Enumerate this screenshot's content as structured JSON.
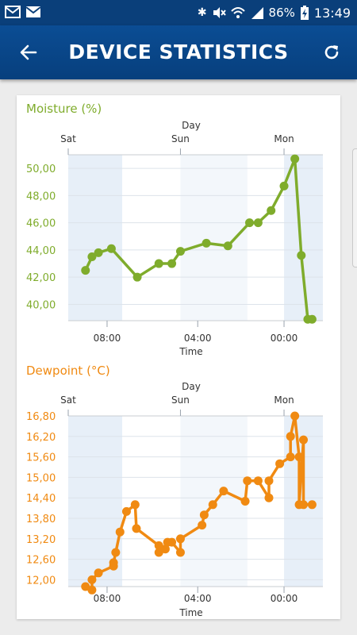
{
  "status_bar": {
    "left_icons": [
      "mail-icon",
      "mail-icon"
    ],
    "battery_percent": "86%",
    "time": "13:49"
  },
  "app_bar": {
    "title": "DEVICE STATISTICS"
  },
  "charts": {
    "moisture": {
      "title": "Moisture (%)",
      "day_label": "Day",
      "time_label": "Time",
      "color": "#7fac2c"
    },
    "dewpoint": {
      "title": "Dewpoint (°C)",
      "day_label": "Day",
      "time_label": "Time",
      "color": "#f08a12"
    }
  },
  "chart_data": [
    {
      "type": "line",
      "title": "Moisture (%)",
      "xlabel": "Time",
      "x2label": "Day",
      "day_ticks": [
        "Sat",
        "Sun",
        "Mon"
      ],
      "time_ticks": [
        "08:00",
        "04:00",
        "00:00"
      ],
      "ylim": [
        38.8,
        51.0
      ],
      "yticks": [
        "40,00",
        "42,00",
        "44,00",
        "46,00",
        "48,00",
        "50,00"
      ],
      "ytick_values": [
        40,
        42,
        44,
        46,
        48,
        50
      ],
      "series": [
        {
          "values": [
            42.5,
            43.5,
            43.8,
            44.1,
            42.0,
            43.0,
            43.0,
            43.9,
            44.5,
            44.3,
            46.0,
            46.0,
            46.9,
            48.7,
            50.7,
            43.6,
            38.9,
            38.9
          ]
        }
      ],
      "x_hours": [
        0,
        1.5,
        3,
        6,
        12,
        17,
        20,
        22,
        28,
        33,
        38,
        40,
        43,
        46,
        48.5,
        50,
        51.5,
        52.5
      ]
    },
    {
      "type": "line",
      "title": "Dewpoint (°C)",
      "xlabel": "Time",
      "x2label": "Day",
      "day_ticks": [
        "Sat",
        "Sun",
        "Mon"
      ],
      "time_ticks": [
        "08:00",
        "04:00",
        "00:00"
      ],
      "ylim": [
        11.8,
        16.8
      ],
      "yticks": [
        "12,00",
        "12,60",
        "13,20",
        "13,80",
        "14,40",
        "15,00",
        "15,60",
        "16,20",
        "16,80"
      ],
      "ytick_values": [
        12.0,
        12.6,
        13.2,
        13.8,
        14.4,
        15.0,
        15.6,
        16.2,
        16.8
      ],
      "series": [
        {
          "values": [
            11.8,
            11.7,
            12.0,
            12.2,
            12.4,
            12.5,
            12.8,
            13.4,
            14.0,
            14.2,
            13.5,
            13.0,
            12.8,
            12.9,
            13.1,
            13.1,
            12.8,
            13.2,
            13.6,
            13.9,
            14.2,
            14.6,
            14.3,
            14.9,
            14.9,
            14.4,
            14.9,
            15.4,
            15.6,
            16.2,
            16.8,
            15.6,
            14.2,
            16.1,
            14.2,
            14.2
          ]
        }
      ],
      "x_hours": [
        0,
        1.5,
        1.5,
        3,
        6.5,
        6.5,
        7,
        8,
        9.5,
        11.5,
        11.8,
        17,
        17,
        18.5,
        19,
        20,
        22,
        22,
        27,
        27.5,
        29.5,
        32,
        37,
        37.5,
        40,
        42.5,
        42.5,
        45,
        47.5,
        47.5,
        48.5,
        49.5,
        49.5,
        50.5,
        50.5,
        52.5
      ]
    }
  ]
}
